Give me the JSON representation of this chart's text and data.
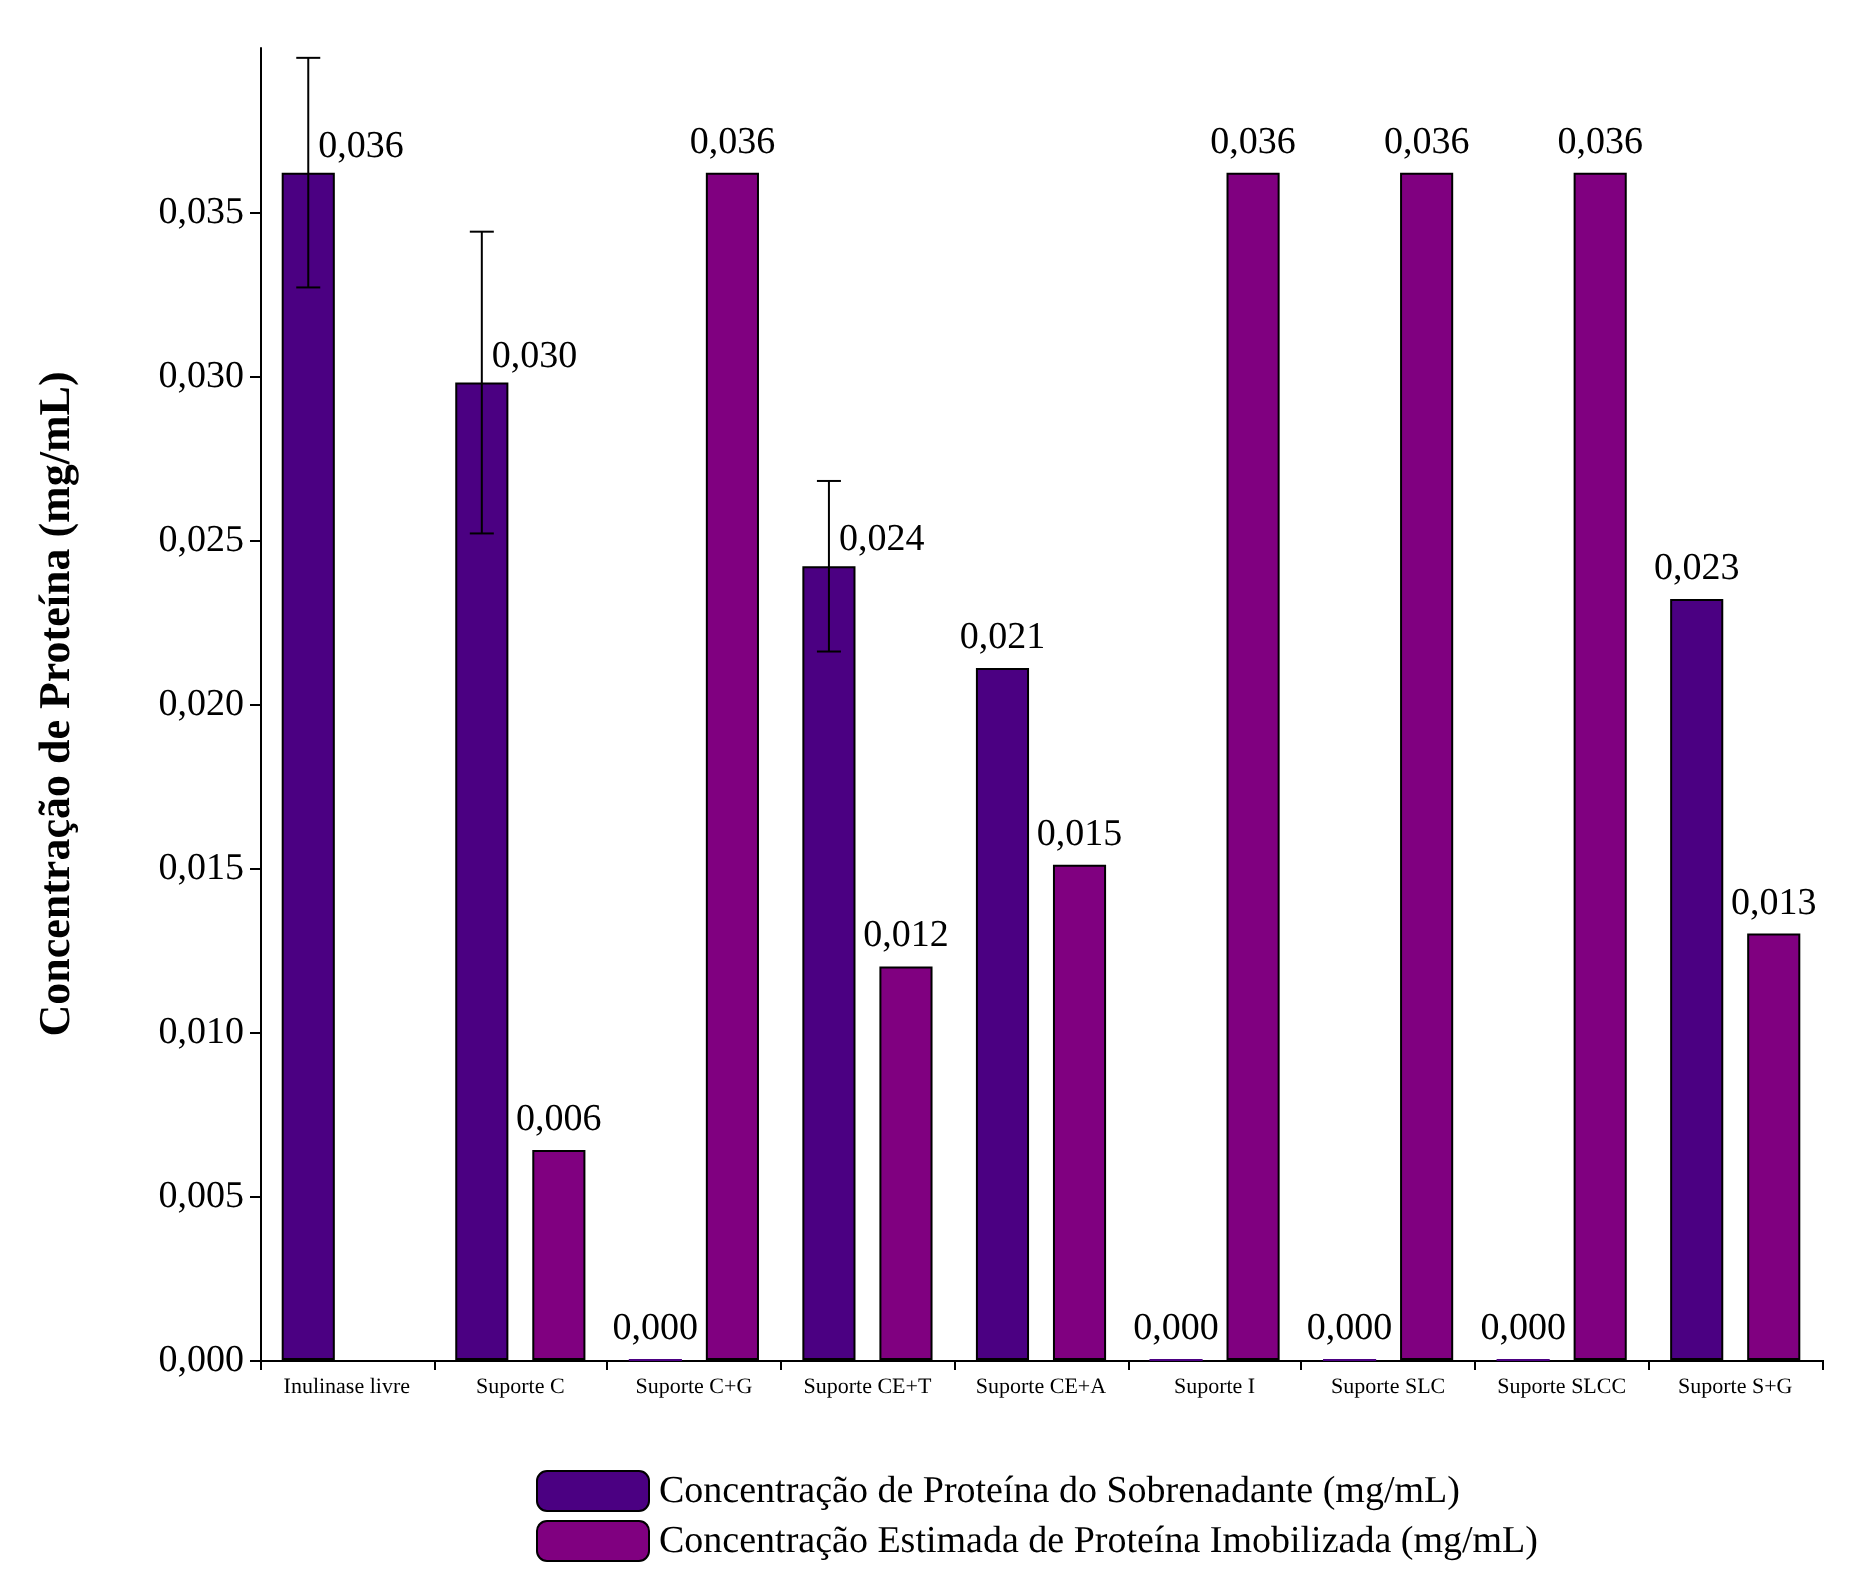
{
  "chart_data": {
    "type": "bar",
    "ylabel": "Concentração de Proteína (mg/mL)",
    "categories": [
      "Inulinase livre",
      "Suporte C",
      "Suporte C+G",
      "Suporte CE+T",
      "Suporte CE+A",
      "Suporte I",
      "Suporte SLC",
      "Suporte SLCC",
      "Suporte S+G"
    ],
    "series": [
      {
        "name": "Concentração de Proteína do Sobrenadante (mg/mL)",
        "color": "#4b0082",
        "values": [
          0.0362,
          0.0298,
          0,
          0.0242,
          0.0211,
          0,
          0,
          0,
          0.0232
        ],
        "errors": [
          0.0035,
          0.0046,
          null,
          0.0026,
          null,
          null,
          null,
          null,
          null
        ],
        "value_labels": [
          "0,036",
          "0,030",
          "0,000",
          "0,024",
          "0,021",
          "0,000",
          "0,000",
          "0,000",
          "0,023"
        ]
      },
      {
        "name": "Concentração Estimada de Proteína Imobilizada (mg/mL)",
        "color": "#800080",
        "values": [
          null,
          0.0064,
          0.0362,
          0.012,
          0.0151,
          0.0362,
          0.0362,
          0.0362,
          0.013
        ],
        "value_labels": [
          null,
          "0,006",
          "0,036",
          "0,012",
          "0,015",
          "0,036",
          "0,036",
          "0,036",
          "0,013"
        ]
      }
    ],
    "ylim": [
      0,
      0.04
    ],
    "yticks": [
      {
        "value": 0,
        "label": "0,000"
      },
      {
        "value": 0.005,
        "label": "0,005"
      },
      {
        "value": 0.01,
        "label": "0,010"
      },
      {
        "value": 0.015,
        "label": "0,015"
      },
      {
        "value": 0.02,
        "label": "0,020"
      },
      {
        "value": 0.025,
        "label": "0,025"
      },
      {
        "value": 0.03,
        "label": "0,030"
      },
      {
        "value": 0.035,
        "label": "0,035"
      }
    ],
    "grid": false,
    "legend": "bottom"
  }
}
